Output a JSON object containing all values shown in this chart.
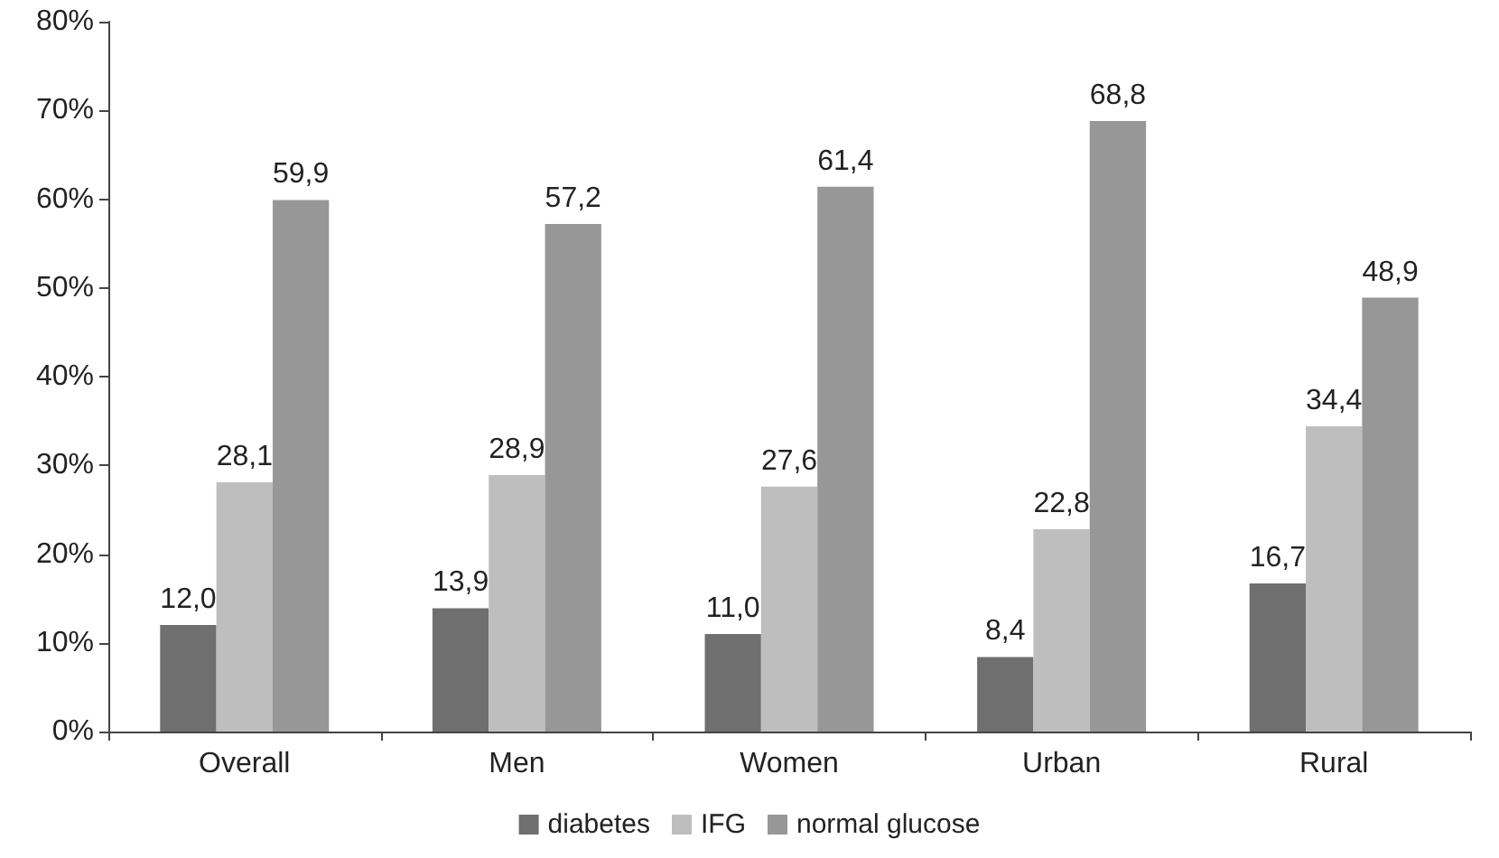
{
  "chart_data": {
    "type": "bar",
    "categories": [
      "Overall",
      "Men",
      "Women",
      "Urban",
      "Rural"
    ],
    "series": [
      {
        "name": "diabetes",
        "color": "#6f6f6f",
        "values": [
          12.0,
          13.9,
          11.0,
          8.4,
          16.7
        ],
        "value_labels": [
          "12,0",
          "13,9",
          "11,0",
          "8,4",
          "16,7"
        ]
      },
      {
        "name": "IFG",
        "color": "#bebebe",
        "values": [
          28.1,
          28.9,
          27.6,
          22.8,
          34.4
        ],
        "value_labels": [
          "28,1",
          "28,9",
          "27,6",
          "22,8",
          "34,4"
        ]
      },
      {
        "name": "normal glucose",
        "color": "#979797",
        "values": [
          59.9,
          57.2,
          61.4,
          68.8,
          48.9
        ],
        "value_labels": [
          "59,9",
          "57,2",
          "61,4",
          "68,8",
          "48,9"
        ]
      }
    ],
    "ylim": [
      0,
      80
    ],
    "yticks": [
      {
        "value": 0,
        "label": "0%"
      },
      {
        "value": 10,
        "label": "10%"
      },
      {
        "value": 20,
        "label": "20%"
      },
      {
        "value": 30,
        "label": "30%"
      },
      {
        "value": 40,
        "label": "40%"
      },
      {
        "value": 50,
        "label": "50%"
      },
      {
        "value": 60,
        "label": "60%"
      },
      {
        "value": 70,
        "label": "70%"
      },
      {
        "value": 80,
        "label": "80%"
      }
    ],
    "grid": false,
    "legend": "bottom"
  }
}
